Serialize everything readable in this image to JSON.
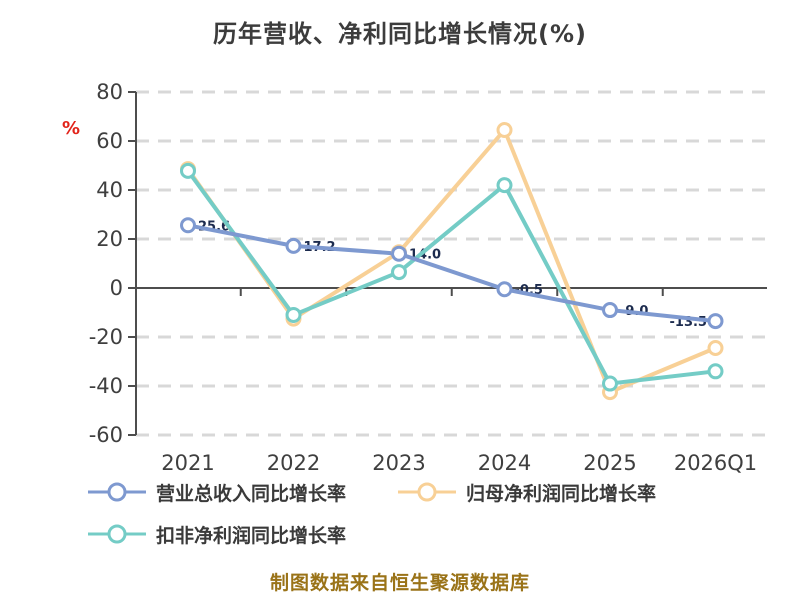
{
  "title": "历年营收、净利同比增长情况(%)",
  "y_axis_unit_label": "%",
  "footer_note": "制图数据来自恒生聚源数据库",
  "colors": {
    "title_text": "#3c3c3c",
    "axis_line": "#4d4d4d",
    "tick_text": "#3f3f3f",
    "gridline": "#d8d8d8",
    "unit_label_red": "#e2231a",
    "footer_text": "#9a7318",
    "point_label_dark": "#1c2b4e",
    "series_revenue": "#7e99d0",
    "series_net_profit": "#f8d096",
    "series_deducted": "#74ccc6"
  },
  "chart_data": {
    "type": "line",
    "title": "历年营收、净利同比增长情况(%)",
    "categories": [
      "2021",
      "2022",
      "2023",
      "2024",
      "2025",
      "2026Q1"
    ],
    "series": [
      {
        "name": "营业总收入同比增长率",
        "color": "#7e99d0",
        "values": [
          25.6,
          17.2,
          14.0,
          -0.5,
          -9.0,
          -13.5
        ],
        "point_labels": [
          "25.6",
          "17.2",
          "14.0",
          "-0.5",
          "-9.0",
          "-13.5"
        ],
        "show_point_labels": true
      },
      {
        "name": "归母净利润同比增长率",
        "color": "#f8d096",
        "values": [
          48.5,
          -12.5,
          14.6,
          64.5,
          -42.5,
          -24.5
        ],
        "point_labels": [],
        "show_point_labels": false
      },
      {
        "name": "扣非净利润同比增长率",
        "color": "#74ccc6",
        "values": [
          47.8,
          -11.0,
          6.5,
          42.0,
          -39.0,
          -34.0
        ],
        "point_labels": [],
        "show_point_labels": false
      }
    ],
    "ylabel": "%",
    "xlabel": "",
    "ylim": [
      -60,
      80
    ],
    "yticks": [
      80,
      60,
      40,
      20,
      0,
      -20,
      -40,
      -60
    ],
    "grid": "horizontal-dashed",
    "zero_line": "solid",
    "legend_position": "bottom",
    "marker": "circle-white-fill"
  }
}
